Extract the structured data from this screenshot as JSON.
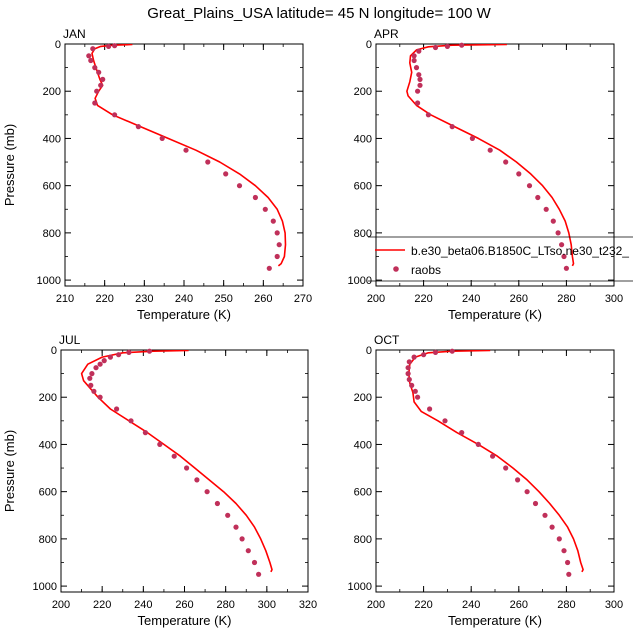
{
  "title": "Great_Plains_USA  latitude= 45 N longitude= 100 W",
  "colors": {
    "model": "#ff0000",
    "obs": "#c0305a"
  },
  "legend": {
    "model_label": "b.e30_beta06.B1850C_LTso.ne30_t232_",
    "obs_label": "raobs"
  },
  "chart_data": [
    {
      "type": "line",
      "panel": "JAN",
      "xlabel": "Temperature (K)",
      "ylabel": "Pressure (mb)",
      "xlim": [
        210,
        270
      ],
      "ylim": [
        1025,
        0
      ],
      "xticks": [
        210,
        220,
        230,
        240,
        250,
        260,
        270
      ],
      "yticks": [
        0,
        200,
        400,
        600,
        800,
        1000
      ],
      "series": [
        {
          "name": "b.e30_beta06.B1850C_LTso.ne30_t232_",
          "style": "line",
          "points": [
            [
              227,
              2
            ],
            [
              222,
              5
            ],
            [
              219,
              10
            ],
            [
              217.5,
              20
            ],
            [
              216.8,
              40
            ],
            [
              217.2,
              70
            ],
            [
              217.8,
              100
            ],
            [
              218.8,
              150
            ],
            [
              219.5,
              175
            ],
            [
              218.5,
              200
            ],
            [
              217.6,
              230
            ],
            [
              218.2,
              260
            ],
            [
              222,
              300
            ],
            [
              229,
              350
            ],
            [
              236,
              400
            ],
            [
              243,
              450
            ],
            [
              249,
              500
            ],
            [
              254,
              550
            ],
            [
              258,
              600
            ],
            [
              261.2,
              650
            ],
            [
              263.5,
              700
            ],
            [
              264.8,
              750
            ],
            [
              265.5,
              800
            ],
            [
              265.6,
              850
            ],
            [
              265.3,
              900
            ],
            [
              264.5,
              930
            ],
            [
              263.8,
              940
            ]
          ]
        },
        {
          "name": "raobs",
          "style": "points",
          "points": [
            [
              222.5,
              7
            ],
            [
              221,
              10
            ],
            [
              217,
              20
            ],
            [
              216,
              50
            ],
            [
              216.5,
              70
            ],
            [
              217.5,
              100
            ],
            [
              218.5,
              120
            ],
            [
              219.5,
              150
            ],
            [
              219,
              175
            ],
            [
              218,
              200
            ],
            [
              217.5,
              250
            ],
            [
              222.5,
              300
            ],
            [
              228.5,
              350
            ],
            [
              234.5,
              400
            ],
            [
              240.5,
              450
            ],
            [
              246,
              500
            ],
            [
              250.5,
              550
            ],
            [
              254,
              600
            ],
            [
              258,
              650
            ],
            [
              260.5,
              700
            ],
            [
              262.5,
              750
            ],
            [
              263.5,
              800
            ],
            [
              264,
              850
            ],
            [
              263.5,
              900
            ],
            [
              261.5,
              950
            ]
          ]
        }
      ]
    },
    {
      "type": "line",
      "panel": "APR",
      "xlabel": "Temperature (K)",
      "ylabel": "",
      "xlim": [
        200,
        300
      ],
      "ylim": [
        1025,
        0
      ],
      "xticks": [
        200,
        220,
        240,
        260,
        280,
        300
      ],
      "yticks": [
        0,
        200,
        400,
        600,
        800,
        1000
      ],
      "series": [
        {
          "name": "b.e30_beta06.B1850C_LTso.ne30_t232_",
          "style": "line",
          "points": [
            [
              255,
              2
            ],
            [
              232,
              5
            ],
            [
              222,
              12
            ],
            [
              217,
              25
            ],
            [
              214.5,
              50
            ],
            [
              214.2,
              80
            ],
            [
              215,
              120
            ],
            [
              214.2,
              160
            ],
            [
              213,
              200
            ],
            [
              213.5,
              220
            ],
            [
              217,
              260
            ],
            [
              223,
              300
            ],
            [
              233,
              350
            ],
            [
              243,
              400
            ],
            [
              252,
              450
            ],
            [
              259,
              500
            ],
            [
              265,
              550
            ],
            [
              270,
              600
            ],
            [
              274,
              650
            ],
            [
              277,
              700
            ],
            [
              279.5,
              750
            ],
            [
              281,
              800
            ],
            [
              282,
              850
            ],
            [
              282.5,
              900
            ],
            [
              283,
              930
            ],
            [
              282.5,
              940
            ]
          ]
        },
        {
          "name": "raobs",
          "style": "points",
          "points": [
            [
              236,
              5
            ],
            [
              230,
              10
            ],
            [
              225,
              15
            ],
            [
              218,
              30
            ],
            [
              216,
              50
            ],
            [
              216,
              70
            ],
            [
              217,
              100
            ],
            [
              218,
              130
            ],
            [
              218.5,
              150
            ],
            [
              218.5,
              175
            ],
            [
              217.5,
              200
            ],
            [
              217.5,
              250
            ],
            [
              222,
              300
            ],
            [
              232,
              350
            ],
            [
              240.5,
              400
            ],
            [
              248,
              450
            ],
            [
              254.5,
              500
            ],
            [
              260,
              550
            ],
            [
              264.5,
              600
            ],
            [
              268,
              650
            ],
            [
              271.5,
              700
            ],
            [
              274.5,
              750
            ],
            [
              276.5,
              800
            ],
            [
              278,
              850
            ],
            [
              279,
              900
            ],
            [
              280,
              950
            ]
          ]
        }
      ]
    },
    {
      "type": "line",
      "panel": "JUL",
      "xlabel": "Temperature (K)",
      "ylabel": "Pressure (mb)",
      "xlim": [
        200,
        320
      ],
      "ylim": [
        1025,
        0
      ],
      "xticks": [
        200,
        220,
        240,
        260,
        280,
        300,
        320
      ],
      "yticks": [
        0,
        200,
        400,
        600,
        800,
        1000
      ],
      "series": [
        {
          "name": "b.e30_beta06.B1850C_LTso.ne30_t232_",
          "style": "line",
          "points": [
            [
              262,
              2
            ],
            [
              245,
              5
            ],
            [
              230,
              12
            ],
            [
              220,
              30
            ],
            [
              213,
              60
            ],
            [
              210,
              100
            ],
            [
              211,
              130
            ],
            [
              214,
              160
            ],
            [
              218,
              200
            ],
            [
              224,
              250
            ],
            [
              233,
              300
            ],
            [
              242,
              350
            ],
            [
              250,
              400
            ],
            [
              258,
              450
            ],
            [
              265,
              500
            ],
            [
              272,
              550
            ],
            [
              279,
              600
            ],
            [
              285,
              650
            ],
            [
              290,
              700
            ],
            [
              294,
              750
            ],
            [
              297,
              800
            ],
            [
              299.5,
              850
            ],
            [
              301.5,
              900
            ],
            [
              302.5,
              930
            ],
            [
              302,
              940
            ]
          ]
        },
        {
          "name": "raobs",
          "style": "points",
          "points": [
            [
              243,
              5
            ],
            [
              233,
              10
            ],
            [
              228,
              20
            ],
            [
              224,
              30
            ],
            [
              221,
              45
            ],
            [
              219,
              60
            ],
            [
              217,
              75
            ],
            [
              215,
              100
            ],
            [
              214,
              120
            ],
            [
              214.5,
              150
            ],
            [
              216,
              175
            ],
            [
              219,
              200
            ],
            [
              227,
              250
            ],
            [
              234,
              300
            ],
            [
              241,
              350
            ],
            [
              248,
              400
            ],
            [
              255,
              450
            ],
            [
              261,
              500
            ],
            [
              266,
              550
            ],
            [
              271,
              600
            ],
            [
              276,
              650
            ],
            [
              281,
              700
            ],
            [
              285,
              750
            ],
            [
              288,
              800
            ],
            [
              291,
              850
            ],
            [
              294,
              900
            ],
            [
              296,
              950
            ]
          ]
        }
      ]
    },
    {
      "type": "line",
      "panel": "OCT",
      "xlabel": "Temperature (K)",
      "ylabel": "",
      "xlim": [
        200,
        300
      ],
      "ylim": [
        1025,
        0
      ],
      "xticks": [
        200,
        220,
        240,
        260,
        280,
        300
      ],
      "yticks": [
        0,
        200,
        400,
        600,
        800,
        1000
      ],
      "series": [
        {
          "name": "b.e30_beta06.B1850C_LTso.ne30_t232_",
          "style": "line",
          "points": [
            [
              248,
              2
            ],
            [
              232,
              5
            ],
            [
              222,
              12
            ],
            [
              216.5,
              30
            ],
            [
              214.2,
              60
            ],
            [
              213.8,
              100
            ],
            [
              214.2,
              140
            ],
            [
              215.5,
              180
            ],
            [
              216,
              220
            ],
            [
              219,
              260
            ],
            [
              226,
              300
            ],
            [
              234,
              350
            ],
            [
              243,
              400
            ],
            [
              251,
              450
            ],
            [
              257.5,
              500
            ],
            [
              263.5,
              550
            ],
            [
              268.5,
              600
            ],
            [
              273,
              650
            ],
            [
              277,
              700
            ],
            [
              280.5,
              750
            ],
            [
              283,
              800
            ],
            [
              284.8,
              850
            ],
            [
              286,
              900
            ],
            [
              287,
              930
            ],
            [
              286.5,
              940
            ]
          ]
        },
        {
          "name": "raobs",
          "style": "points",
          "points": [
            [
              232,
              5
            ],
            [
              225,
              10
            ],
            [
              220,
              20
            ],
            [
              216,
              30
            ],
            [
              214,
              50
            ],
            [
              213.5,
              75
            ],
            [
              213.5,
              100
            ],
            [
              214,
              125
            ],
            [
              215,
              150
            ],
            [
              216.5,
              175
            ],
            [
              217.5,
              200
            ],
            [
              222.5,
              250
            ],
            [
              229,
              300
            ],
            [
              236,
              350
            ],
            [
              243,
              400
            ],
            [
              249,
              450
            ],
            [
              254.5,
              500
            ],
            [
              259.5,
              550
            ],
            [
              263.5,
              600
            ],
            [
              267,
              650
            ],
            [
              271,
              700
            ],
            [
              274,
              750
            ],
            [
              277,
              800
            ],
            [
              279,
              850
            ],
            [
              280.5,
              900
            ],
            [
              281,
              950
            ]
          ]
        }
      ]
    }
  ]
}
